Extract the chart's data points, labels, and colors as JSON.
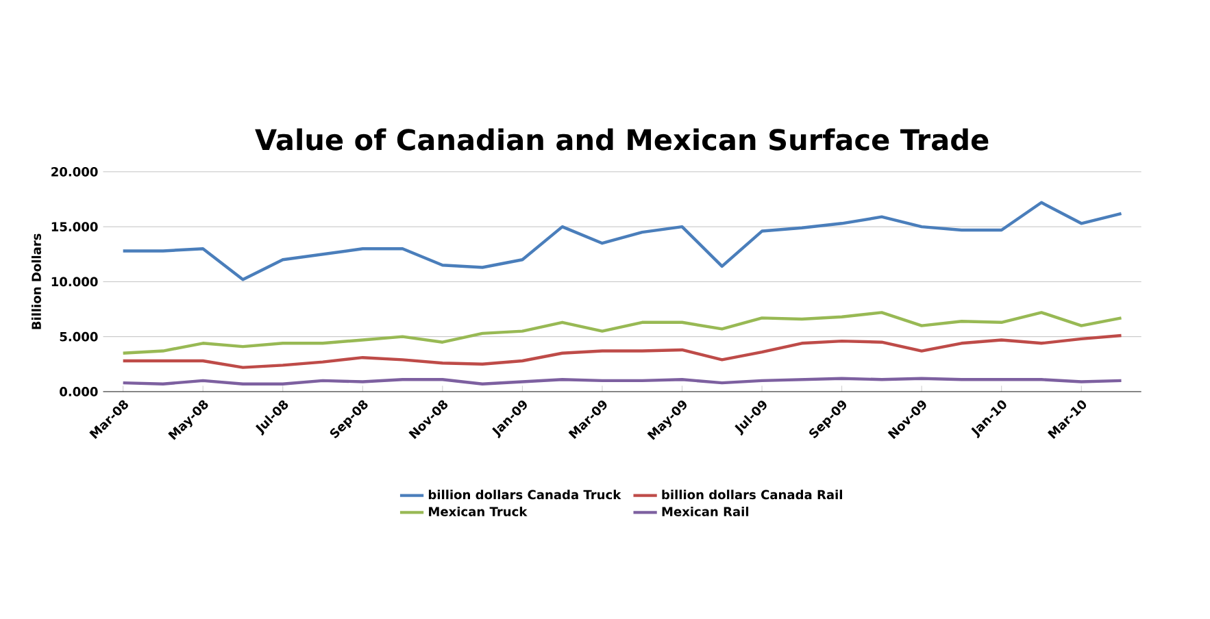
{
  "chart_data": {
    "type": "line",
    "title": "Value of Canadian and Mexican Surface Trade",
    "ylabel": "Billion Dollars",
    "categories": [
      "Mar-08",
      null,
      "May-08",
      null,
      "Jul-08",
      null,
      "Sep-08",
      null,
      "Nov-08",
      null,
      "Jan-09",
      null,
      "Mar-09",
      null,
      "May-09",
      null,
      "Jul-09",
      null,
      "Sep-09",
      null,
      "Nov-09",
      null,
      "Jan-10",
      null,
      "Mar-10",
      null
    ],
    "series": [
      {
        "name": "billion dollars Canada Truck",
        "color": "#4a7ebb",
        "values": [
          12.8,
          12.8,
          13.0,
          10.2,
          12.0,
          12.5,
          13.0,
          13.0,
          11.5,
          11.3,
          12.0,
          15.0,
          13.5,
          14.5,
          15.0,
          11.4,
          14.6,
          14.9,
          15.3,
          15.9,
          15.0,
          14.7,
          14.7,
          17.2,
          15.3,
          16.2
        ]
      },
      {
        "name": "billion dollars Canada Rail",
        "color": "#be4b48",
        "values": [
          2.8,
          2.8,
          2.8,
          2.2,
          2.4,
          2.7,
          3.1,
          2.9,
          2.6,
          2.5,
          2.8,
          3.5,
          3.7,
          3.7,
          3.8,
          2.9,
          3.6,
          4.4,
          4.6,
          4.5,
          3.7,
          4.4,
          4.7,
          4.4,
          4.8,
          5.1
        ]
      },
      {
        "name": "Mexican Truck",
        "color": "#98b954",
        "values": [
          3.5,
          3.7,
          4.4,
          4.1,
          4.4,
          4.4,
          4.7,
          5.0,
          4.5,
          5.3,
          5.5,
          6.3,
          5.5,
          6.3,
          6.3,
          5.7,
          6.7,
          6.6,
          6.8,
          7.2,
          6.0,
          6.4,
          6.3,
          7.2,
          6.0,
          6.7
        ]
      },
      {
        "name": "Mexican Rail",
        "color": "#7d60a0",
        "values": [
          0.8,
          0.7,
          1.0,
          0.7,
          0.7,
          1.0,
          0.9,
          1.1,
          1.1,
          0.7,
          0.9,
          1.1,
          1.0,
          1.0,
          1.1,
          0.8,
          1.0,
          1.1,
          1.2,
          1.1,
          1.2,
          1.1,
          1.1,
          1.1,
          0.9,
          1.0
        ]
      }
    ],
    "ylim": [
      0,
      20
    ],
    "yticks": [
      {
        "value": 0,
        "label": "0.000"
      },
      {
        "value": 5,
        "label": "5.000"
      },
      {
        "value": 10,
        "label": "10.000"
      },
      {
        "value": 15,
        "label": "15.000"
      },
      {
        "value": 20,
        "label": "20.000"
      }
    ],
    "grid": "y",
    "legend": "bottom",
    "marker": "none",
    "line_style": "solid"
  }
}
